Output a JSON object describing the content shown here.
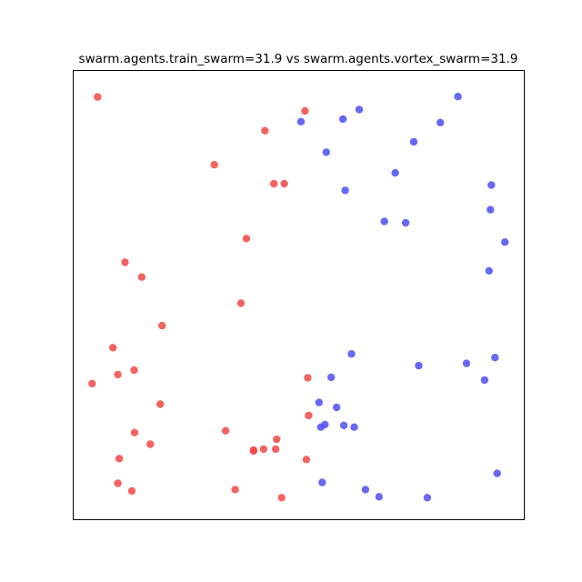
{
  "chart_data": {
    "type": "scatter",
    "title": "swarm.agents.train_swarm=31.9 vs swarm.agents.vortex_swarm=31.9",
    "xlabel": "",
    "ylabel": "",
    "xlim": [
      0,
      100
    ],
    "ylim": [
      0,
      100
    ],
    "axes_ticks": false,
    "grid": false,
    "legend": "none",
    "series": [
      {
        "color": "#f24646",
        "points": [
          [
            5.4,
            94.1
          ],
          [
            51.4,
            91.0
          ],
          [
            42.5,
            86.6
          ],
          [
            31.3,
            79.0
          ],
          [
            44.5,
            74.8
          ],
          [
            46.8,
            74.8
          ],
          [
            38.4,
            62.6
          ],
          [
            11.5,
            57.3
          ],
          [
            15.2,
            54.0
          ],
          [
            37.2,
            48.2
          ],
          [
            19.7,
            43.2
          ],
          [
            8.8,
            38.3
          ],
          [
            9.9,
            32.3
          ],
          [
            13.5,
            33.3
          ],
          [
            4.2,
            30.3
          ],
          [
            52.0,
            31.6
          ],
          [
            19.3,
            25.7
          ],
          [
            52.2,
            23.2
          ],
          [
            13.6,
            19.4
          ],
          [
            33.8,
            19.8
          ],
          [
            17.1,
            16.8
          ],
          [
            45.1,
            17.9
          ],
          [
            44.9,
            15.7
          ],
          [
            42.2,
            15.7
          ],
          [
            40.0,
            15.5
          ],
          [
            40.0,
            15.3
          ],
          [
            10.2,
            13.6
          ],
          [
            51.7,
            13.4
          ],
          [
            9.9,
            8.1
          ],
          [
            13.0,
            6.4
          ],
          [
            35.9,
            6.7
          ],
          [
            46.2,
            4.9
          ]
        ]
      },
      {
        "color": "#4d4df2",
        "points": [
          [
            85.3,
            94.2
          ],
          [
            63.4,
            91.3
          ],
          [
            59.8,
            89.2
          ],
          [
            50.5,
            88.6
          ],
          [
            81.4,
            88.4
          ],
          [
            75.5,
            84.1
          ],
          [
            56.1,
            81.8
          ],
          [
            71.4,
            77.2
          ],
          [
            92.7,
            74.5
          ],
          [
            60.3,
            73.3
          ],
          [
            92.5,
            69.0
          ],
          [
            69.0,
            66.4
          ],
          [
            73.7,
            66.1
          ],
          [
            95.7,
            61.8
          ],
          [
            92.2,
            55.4
          ],
          [
            61.7,
            36.9
          ],
          [
            76.6,
            34.3
          ],
          [
            87.2,
            34.8
          ],
          [
            93.5,
            36.1
          ],
          [
            91.2,
            31.1
          ],
          [
            57.2,
            31.7
          ],
          [
            54.5,
            26.1
          ],
          [
            58.4,
            25.0
          ],
          [
            55.8,
            21.2
          ],
          [
            54.9,
            20.6
          ],
          [
            60.0,
            21.0
          ],
          [
            62.3,
            20.6
          ],
          [
            94.0,
            10.3
          ],
          [
            55.2,
            8.3
          ],
          [
            64.8,
            6.7
          ],
          [
            67.8,
            5.1
          ],
          [
            78.5,
            4.9
          ]
        ]
      }
    ]
  }
}
